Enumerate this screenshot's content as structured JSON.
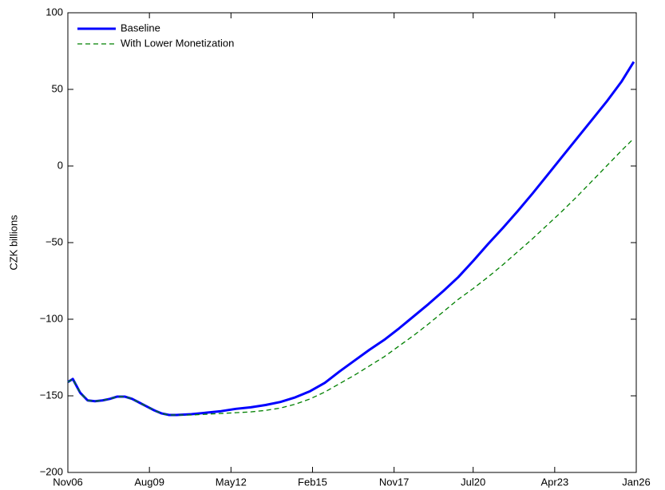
{
  "chart_data": {
    "type": "line",
    "y_label": "CZK billions",
    "x": [
      "2006-11",
      "2007-01",
      "2007-04",
      "2007-07",
      "2007-10",
      "2008-01",
      "2008-04",
      "2008-07",
      "2008-10",
      "2009-01",
      "2009-04",
      "2009-07",
      "2009-10",
      "2010-01",
      "2010-04",
      "2010-07",
      "2011-01",
      "2011-07",
      "2012-01",
      "2012-07",
      "2013-01",
      "2013-07",
      "2014-01",
      "2014-07",
      "2015-01",
      "2015-07",
      "2016-01",
      "2016-07",
      "2017-01",
      "2017-07",
      "2018-01",
      "2018-07",
      "2019-01",
      "2019-07",
      "2020-01",
      "2020-07",
      "2021-01",
      "2021-07",
      "2022-01",
      "2022-07",
      "2023-01",
      "2023-07",
      "2024-01",
      "2024-07",
      "2025-01",
      "2025-07",
      "2025-12"
    ],
    "series": [
      {
        "name": "Baseline",
        "color": "#0000ff",
        "line_style": "solid",
        "values": [
          -141,
          -139,
          -148,
          -153,
          -153.5,
          -153,
          -152,
          -150.5,
          -150.5,
          -152,
          -154.5,
          -157,
          -159.5,
          -161.5,
          -162.5,
          -162.5,
          -162,
          -161,
          -160,
          -158.5,
          -157.5,
          -156,
          -154,
          -151,
          -147,
          -141.5,
          -134,
          -127,
          -120,
          -113.5,
          -106,
          -98,
          -90,
          -81.5,
          -72.5,
          -62,
          -51,
          -40.5,
          -29.5,
          -18,
          -6,
          6,
          18,
          30,
          42,
          55,
          68
        ]
      },
      {
        "name": "With Lower Monetization",
        "color": "#008000",
        "line_style": "dashed",
        "values": [
          -141,
          -139,
          -148,
          -153,
          -153.5,
          -153,
          -152,
          -150.5,
          -150.5,
          -152,
          -154.5,
          -157,
          -159.5,
          -161.5,
          -162.5,
          -162.5,
          -162.5,
          -162,
          -161.5,
          -161,
          -160.5,
          -159.5,
          -158,
          -155.5,
          -152,
          -147.5,
          -142,
          -136.5,
          -130.5,
          -124.5,
          -117.5,
          -110.5,
          -103,
          -95,
          -87,
          -80,
          -72.5,
          -64.5,
          -56,
          -47.5,
          -38.5,
          -29.5,
          -20,
          -10,
          0,
          10,
          18
        ]
      }
    ],
    "xlim": [
      "2006-11",
      "2026-01"
    ],
    "xticks": [
      {
        "value": "2006-11",
        "label": "Nov06"
      },
      {
        "value": "2009-08",
        "label": "Aug09"
      },
      {
        "value": "2012-05",
        "label": "May12"
      },
      {
        "value": "2015-02",
        "label": "Feb15"
      },
      {
        "value": "2017-11",
        "label": "Nov17"
      },
      {
        "value": "2020-07",
        "label": "Jul20"
      },
      {
        "value": "2023-04",
        "label": "Apr23"
      },
      {
        "value": "2026-01",
        "label": "Jan26"
      }
    ],
    "ylim": [
      -200,
      100
    ],
    "yticks": [
      {
        "value": -200,
        "label": "−200"
      },
      {
        "value": -150,
        "label": "−150"
      },
      {
        "value": -100,
        "label": "−100"
      },
      {
        "value": -50,
        "label": "−50"
      },
      0,
      50,
      100
    ],
    "grid": false,
    "legend": "northwest"
  }
}
